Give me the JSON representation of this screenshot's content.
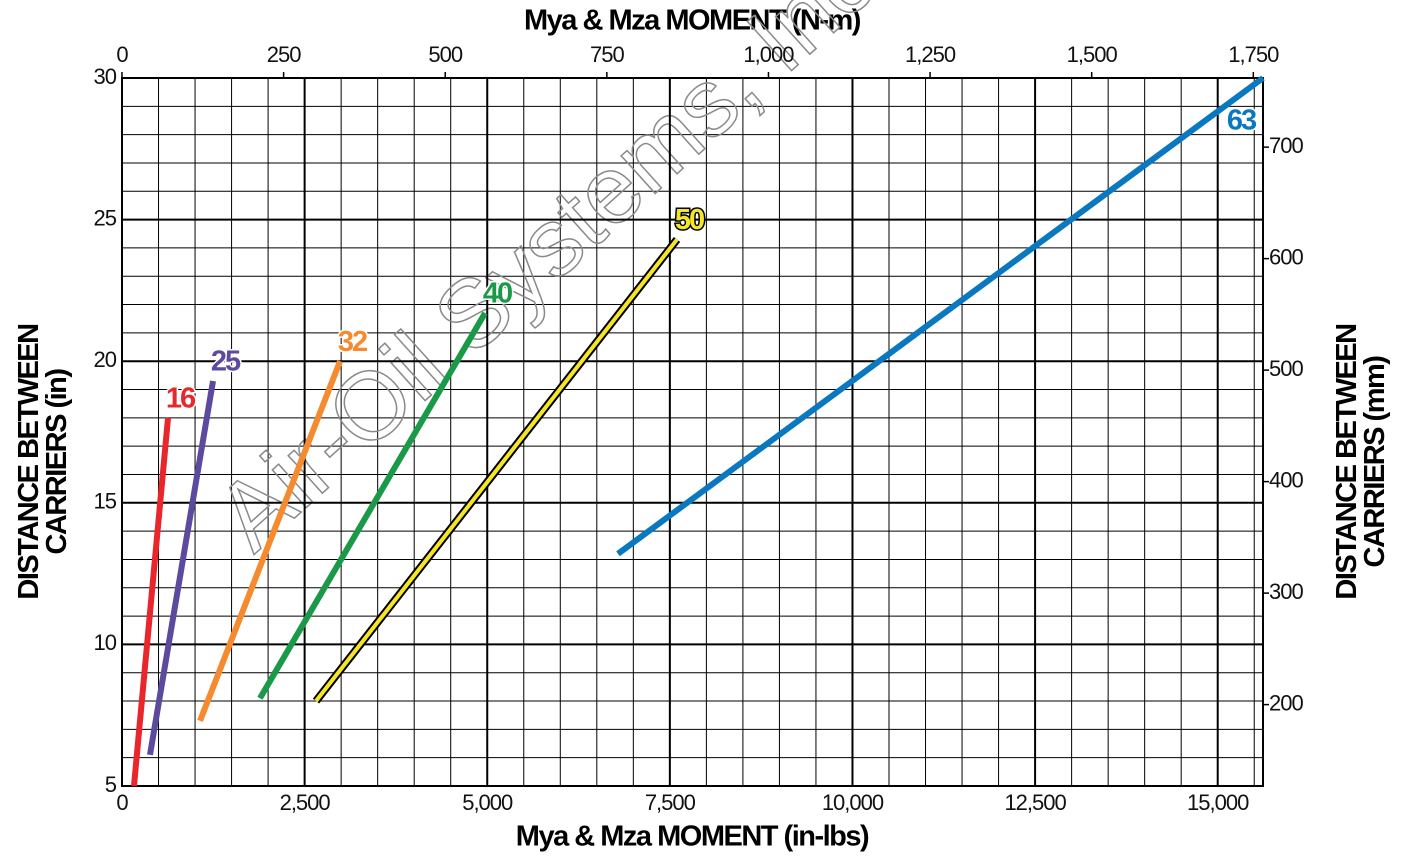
{
  "chart_data": {
    "type": "line",
    "xlabel": "Mya & Mza MOMENT (in-lbs)",
    "x2label": "Mya & Mza MOMENT (N-m)",
    "ylabel": [
      "DISTANCE BETWEEN",
      "CARRIERS (in)"
    ],
    "y2label": [
      "DISTANCE BETWEEN",
      "CARRIERS (mm)"
    ],
    "watermark": "Air-Oil Systems, Inc.",
    "xlim": [
      0,
      15620
    ],
    "xticks": [
      0,
      {
        "value": 2500,
        "label": "2,500"
      },
      {
        "value": 5000,
        "label": "5,000"
      },
      {
        "value": 7500,
        "label": "7,500"
      },
      {
        "value": 10000,
        "label": "10,000"
      },
      {
        "value": 12500,
        "label": "12,500"
      },
      {
        "value": 15000,
        "label": "15,000"
      }
    ],
    "x2lim": [
      0,
      1765
    ],
    "x2ticks": [
      0,
      250,
      500,
      750,
      {
        "value": 1000,
        "label": "1,000"
      },
      {
        "value": 1250,
        "label": "1,250"
      },
      {
        "value": 1500,
        "label": "1,500"
      },
      {
        "value": 1750,
        "label": "1,750"
      }
    ],
    "ylim": [
      5,
      30
    ],
    "yticks": [
      5,
      10,
      15,
      20,
      25,
      30
    ],
    "y2lim": [
      127,
      762
    ],
    "y2ticks": [
      200,
      300,
      400,
      500,
      600,
      700
    ],
    "grid": true,
    "xminor_step": 500,
    "yminor_step": 1,
    "series": [
      {
        "name": "16",
        "color": "#e8262b",
        "x": [
          164,
          630
        ],
        "values": [
          5.0,
          18.0
        ]
      },
      {
        "name": "25",
        "color": "#5b4a9e",
        "x": [
          383,
          1246
        ],
        "values": [
          6.1,
          19.3
        ]
      },
      {
        "name": "32",
        "color": "#f58a2e",
        "x": [
          1068,
          2985
        ],
        "values": [
          7.3,
          20.0
        ]
      },
      {
        "name": "40",
        "color": "#1a9a48",
        "x": [
          1889,
          4970
        ],
        "values": [
          8.1,
          21.7
        ]
      },
      {
        "name": "50",
        "color": "#f5e625",
        "outline": "#000000",
        "x": [
          2656,
          7598
        ],
        "values": [
          8.0,
          24.3
        ]
      },
      {
        "name": "63",
        "color": "#0a78c0",
        "x": [
          6790,
          15620
        ],
        "values": [
          13.2,
          30.0
        ]
      }
    ]
  }
}
